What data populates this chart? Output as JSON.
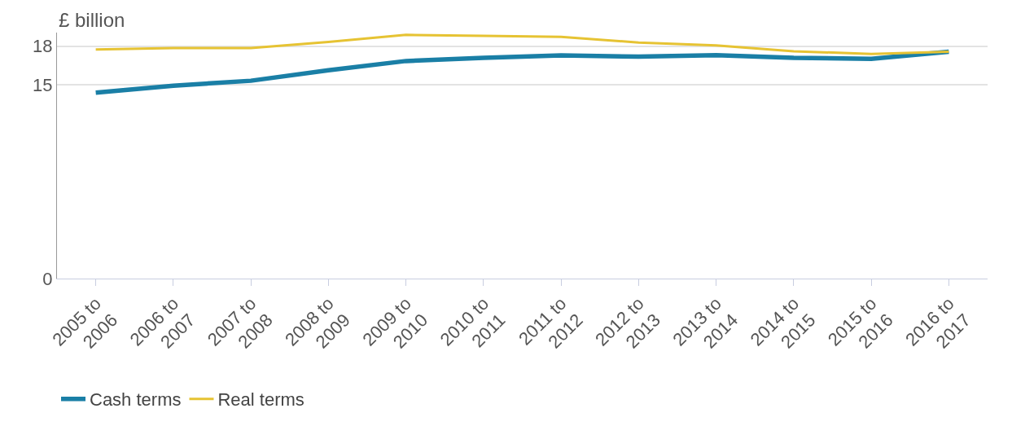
{
  "chart_data": {
    "type": "line",
    "ylabel": "£ billion",
    "categories": [
      "2005 to 2006",
      "2006 to 2007",
      "2007 to 2008",
      "2008 to 2009",
      "2009 to 2010",
      "2010 to 2011",
      "2011 to 2012",
      "2012 to 2013",
      "2013 to 2014",
      "2014 to 2015",
      "2015 to 2016",
      "2016 to 2017"
    ],
    "series": [
      {
        "name": "Cash terms",
        "color": "#1a7fa6",
        "values": [
          14.4,
          14.94,
          15.32,
          16.13,
          16.85,
          17.09,
          17.28,
          17.19,
          17.3,
          17.09,
          17.02,
          17.57
        ]
      },
      {
        "name": "Real terms",
        "color": "#e6c333",
        "values": [
          17.74,
          17.85,
          17.85,
          18.32,
          18.87,
          18.79,
          18.72,
          18.28,
          18.06,
          17.6,
          17.4,
          17.57
        ]
      }
    ],
    "ylim": [
      0,
      19.05
    ],
    "yticks": [
      0,
      15,
      18
    ],
    "grid": "y",
    "legend": "bottom left",
    "marker": "none",
    "line_style": "solid"
  }
}
